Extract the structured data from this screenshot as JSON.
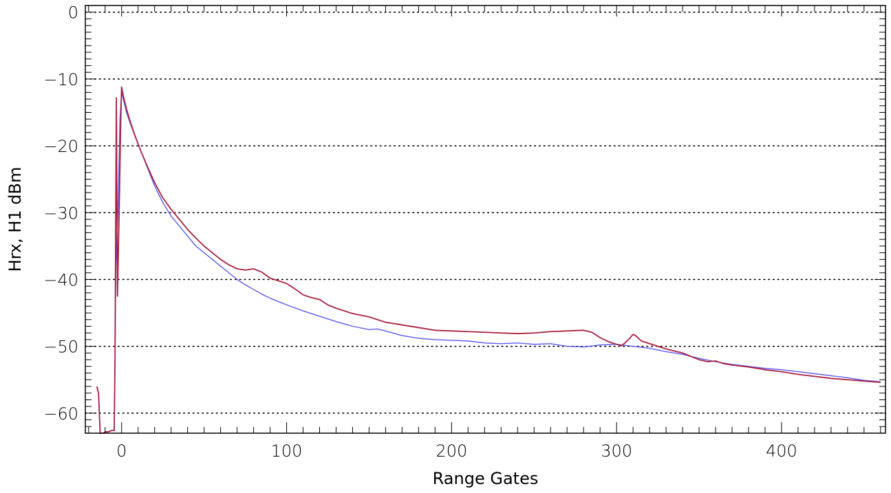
{
  "chart_data": {
    "type": "line",
    "xlabel": "Range Gates",
    "ylabel": "Hrx, H1 dBm",
    "xlim": [
      -22,
      463
    ],
    "ylim": [
      -63,
      1
    ],
    "x_ticks": [
      0,
      100,
      200,
      300,
      400
    ],
    "x_tick_labels": [
      "0",
      "100",
      "200",
      "300",
      "400"
    ],
    "y_ticks": [
      0,
      -10,
      -20,
      -30,
      -40,
      -50,
      -60
    ],
    "y_tick_labels": [
      "0",
      "−10",
      "−20",
      "−30",
      "−40",
      "−50",
      "−60"
    ],
    "grid": {
      "y": true,
      "x": false,
      "style": "dotted"
    },
    "series": [
      {
        "color": "#5a5af0",
        "points": [
          [
            -15,
            -56.0
          ],
          [
            -14,
            -57.0
          ],
          [
            -13,
            -63.0
          ],
          [
            -11,
            -63.0
          ],
          [
            -10,
            -62.8
          ],
          [
            -8,
            -62.8
          ],
          [
            -6,
            -62.6
          ],
          [
            -4.5,
            -62.6
          ],
          [
            -4,
            -52.0
          ],
          [
            -3.5,
            -38.0
          ],
          [
            -2,
            -28.0
          ],
          [
            -1,
            -16.0
          ],
          [
            0,
            -12.0
          ],
          [
            1,
            -13.0
          ],
          [
            3,
            -15.0
          ],
          [
            5,
            -16.5
          ],
          [
            8,
            -18.5
          ],
          [
            12,
            -21.0
          ],
          [
            16,
            -23.5
          ],
          [
            20,
            -26.0
          ],
          [
            25,
            -28.5
          ],
          [
            30,
            -30.5
          ],
          [
            35,
            -32.0
          ],
          [
            40,
            -33.5
          ],
          [
            45,
            -35.0
          ],
          [
            50,
            -36.0
          ],
          [
            55,
            -37.0
          ],
          [
            60,
            -38.0
          ],
          [
            65,
            -39.0
          ],
          [
            70,
            -40.0
          ],
          [
            75,
            -40.8
          ],
          [
            80,
            -41.5
          ],
          [
            85,
            -42.2
          ],
          [
            90,
            -42.8
          ],
          [
            95,
            -43.3
          ],
          [
            100,
            -43.8
          ],
          [
            110,
            -44.7
          ],
          [
            120,
            -45.5
          ],
          [
            130,
            -46.3
          ],
          [
            140,
            -47.0
          ],
          [
            150,
            -47.5
          ],
          [
            155,
            -47.4
          ],
          [
            160,
            -47.7
          ],
          [
            170,
            -48.4
          ],
          [
            180,
            -48.8
          ],
          [
            190,
            -49.0
          ],
          [
            200,
            -49.1
          ],
          [
            210,
            -49.2
          ],
          [
            220,
            -49.5
          ],
          [
            230,
            -49.6
          ],
          [
            240,
            -49.5
          ],
          [
            250,
            -49.7
          ],
          [
            260,
            -49.6
          ],
          [
            270,
            -50.0
          ],
          [
            280,
            -50.1
          ],
          [
            290,
            -49.8
          ],
          [
            300,
            -49.7
          ],
          [
            310,
            -50.0
          ],
          [
            320,
            -50.3
          ],
          [
            330,
            -50.8
          ],
          [
            340,
            -51.2
          ],
          [
            350,
            -51.8
          ],
          [
            360,
            -52.3
          ],
          [
            370,
            -52.7
          ],
          [
            380,
            -53.0
          ],
          [
            390,
            -53.3
          ],
          [
            400,
            -53.5
          ],
          [
            410,
            -53.8
          ],
          [
            420,
            -54.1
          ],
          [
            430,
            -54.4
          ],
          [
            440,
            -54.7
          ],
          [
            450,
            -55.1
          ],
          [
            460,
            -55.3
          ]
        ]
      },
      {
        "color": "#a8203f",
        "points": [
          [
            -15,
            -56.0
          ],
          [
            -14,
            -57.0
          ],
          [
            -13,
            -63.0
          ],
          [
            -11,
            -63.0
          ],
          [
            -10,
            -62.8
          ],
          [
            -8,
            -62.8
          ],
          [
            -6,
            -62.6
          ],
          [
            -4.5,
            -62.6
          ],
          [
            -4,
            -52.0
          ],
          [
            -3.2,
            -12.8
          ],
          [
            -2.5,
            -42.5
          ],
          [
            -1.5,
            -30.0
          ],
          [
            -0.5,
            -16.0
          ],
          [
            0,
            -11.2
          ],
          [
            1,
            -12.5
          ],
          [
            3,
            -14.5
          ],
          [
            5,
            -16.2
          ],
          [
            8,
            -18.4
          ],
          [
            12,
            -21.0
          ],
          [
            16,
            -23.3
          ],
          [
            20,
            -25.5
          ],
          [
            25,
            -27.8
          ],
          [
            30,
            -29.5
          ],
          [
            35,
            -31.0
          ],
          [
            40,
            -32.5
          ],
          [
            45,
            -33.8
          ],
          [
            50,
            -35.0
          ],
          [
            55,
            -36.0
          ],
          [
            60,
            -37.0
          ],
          [
            65,
            -37.8
          ],
          [
            70,
            -38.4
          ],
          [
            75,
            -38.6
          ],
          [
            80,
            -38.4
          ],
          [
            85,
            -38.9
          ],
          [
            90,
            -39.8
          ],
          [
            95,
            -40.2
          ],
          [
            100,
            -40.6
          ],
          [
            105,
            -41.4
          ],
          [
            110,
            -42.3
          ],
          [
            115,
            -42.7
          ],
          [
            120,
            -43.0
          ],
          [
            125,
            -43.8
          ],
          [
            130,
            -44.3
          ],
          [
            140,
            -45.1
          ],
          [
            150,
            -45.6
          ],
          [
            160,
            -46.4
          ],
          [
            170,
            -46.8
          ],
          [
            180,
            -47.2
          ],
          [
            190,
            -47.6
          ],
          [
            200,
            -47.7
          ],
          [
            210,
            -47.8
          ],
          [
            220,
            -47.9
          ],
          [
            230,
            -48.0
          ],
          [
            240,
            -48.1
          ],
          [
            250,
            -48.0
          ],
          [
            260,
            -47.8
          ],
          [
            270,
            -47.7
          ],
          [
            280,
            -47.6
          ],
          [
            285,
            -47.9
          ],
          [
            290,
            -48.7
          ],
          [
            295,
            -49.3
          ],
          [
            300,
            -49.7
          ],
          [
            303,
            -49.9
          ],
          [
            305,
            -49.5
          ],
          [
            308,
            -48.8
          ],
          [
            310,
            -48.2
          ],
          [
            312,
            -48.5
          ],
          [
            315,
            -49.2
          ],
          [
            320,
            -49.6
          ],
          [
            325,
            -50.0
          ],
          [
            330,
            -50.4
          ],
          [
            335,
            -50.7
          ],
          [
            340,
            -51.0
          ],
          [
            345,
            -51.5
          ],
          [
            350,
            -52.0
          ],
          [
            355,
            -52.3
          ],
          [
            360,
            -52.2
          ],
          [
            365,
            -52.6
          ],
          [
            370,
            -52.8
          ],
          [
            380,
            -53.1
          ],
          [
            390,
            -53.5
          ],
          [
            400,
            -53.8
          ],
          [
            410,
            -54.2
          ],
          [
            420,
            -54.5
          ],
          [
            430,
            -54.8
          ],
          [
            440,
            -55.0
          ],
          [
            450,
            -55.2
          ],
          [
            460,
            -55.4
          ]
        ]
      }
    ]
  }
}
